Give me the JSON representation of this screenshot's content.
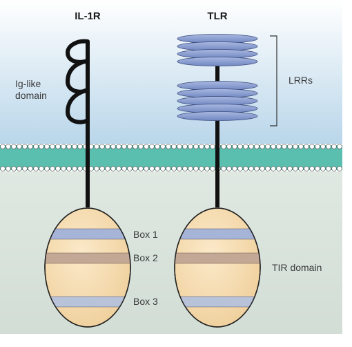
{
  "labels": {
    "il1r": "IL-1R",
    "tlr": "TLR",
    "ig_like_line1": "Ig-like",
    "ig_like_line2": "domain",
    "lrrs": "LRRs",
    "box1": "Box 1",
    "box2": "Box 2",
    "box3": "Box 3",
    "tir_domain": "TIR domain"
  },
  "colors": {
    "extracellular_top": "#ffffff",
    "extracellular_bottom": "#b9d6ea",
    "intracellular": "#d9e4dc",
    "membrane_band": "#5bbfb0",
    "lipid_head": "#ffffff",
    "lrr_disc": "#8a9fd0",
    "tir_fill": "#f3d7a8",
    "box_blue": "#a6b4d8",
    "box_brown": "#c4a896",
    "stalk": "#111111"
  }
}
